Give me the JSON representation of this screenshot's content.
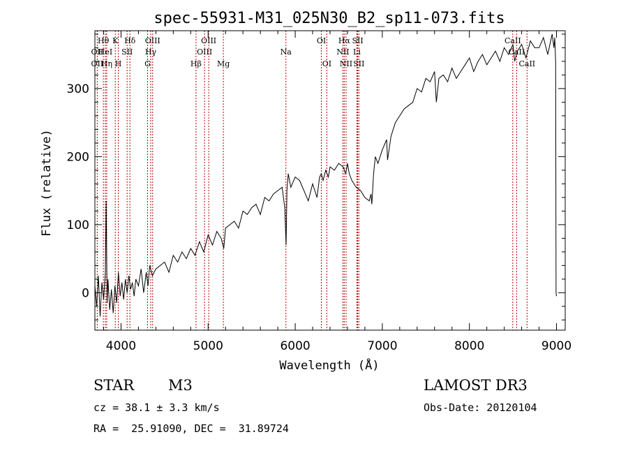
{
  "chart_data": {
    "type": "line",
    "title": "spec-55931-M31_025N30_B2_sp11-073.fits",
    "xlabel": "Wavelength (Å)",
    "ylabel": "Flux (relative)",
    "xlim": [
      3700,
      9100
    ],
    "ylim": [
      -55,
      385
    ],
    "xticks": [
      4000,
      5000,
      6000,
      7000,
      8000,
      9000
    ],
    "yticks": [
      0,
      100,
      200,
      300
    ],
    "series": [
      {
        "name": "spectrum",
        "x": [
          3700,
          3720,
          3740,
          3760,
          3780,
          3800,
          3820,
          3830,
          3840,
          3850,
          3870,
          3890,
          3910,
          3930,
          3950,
          3970,
          3990,
          4010,
          4030,
          4050,
          4070,
          4090,
          4110,
          4130,
          4150,
          4170,
          4200,
          4230,
          4260,
          4290,
          4310,
          4330,
          4360,
          4400,
          4450,
          4500,
          4550,
          4600,
          4650,
          4700,
          4750,
          4800,
          4850,
          4900,
          4950,
          5000,
          5050,
          5100,
          5150,
          5180,
          5200,
          5250,
          5300,
          5350,
          5400,
          5450,
          5500,
          5550,
          5600,
          5650,
          5700,
          5750,
          5800,
          5850,
          5880,
          5895,
          5905,
          5920,
          5950,
          6000,
          6050,
          6100,
          6150,
          6200,
          6250,
          6280,
          6300,
          6320,
          6350,
          6380,
          6400,
          6450,
          6500,
          6550,
          6580,
          6600,
          6620,
          6650,
          6700,
          6750,
          6800,
          6850,
          6870,
          6880,
          6900,
          6920,
          6950,
          7000,
          7050,
          7060,
          7100,
          7150,
          7200,
          7250,
          7300,
          7350,
          7400,
          7450,
          7500,
          7550,
          7600,
          7620,
          7650,
          7700,
          7750,
          7800,
          7850,
          7900,
          7950,
          8000,
          8050,
          8100,
          8150,
          8200,
          8250,
          8300,
          8350,
          8400,
          8450,
          8500,
          8520,
          8550,
          8600,
          8650,
          8700,
          8750,
          8800,
          8850,
          8900,
          8950,
          8970,
          8980,
          8990,
          8995,
          9000
        ],
        "y": [
          10,
          -20,
          25,
          -35,
          15,
          -10,
          30,
          135,
          -15,
          20,
          -25,
          5,
          -30,
          10,
          -15,
          30,
          -5,
          15,
          -10,
          20,
          0,
          25,
          5,
          15,
          -5,
          20,
          10,
          35,
          0,
          30,
          10,
          40,
          25,
          35,
          40,
          45,
          30,
          55,
          45,
          60,
          50,
          65,
          55,
          75,
          60,
          85,
          70,
          90,
          80,
          65,
          95,
          100,
          105,
          95,
          120,
          115,
          125,
          130,
          115,
          140,
          135,
          145,
          150,
          155,
          125,
          70,
          150,
          175,
          155,
          170,
          165,
          150,
          135,
          160,
          140,
          170,
          175,
          165,
          180,
          170,
          185,
          180,
          190,
          185,
          175,
          190,
          175,
          165,
          155,
          150,
          140,
          135,
          145,
          130,
          175,
          200,
          190,
          210,
          225,
          195,
          230,
          250,
          260,
          270,
          275,
          280,
          300,
          295,
          315,
          310,
          325,
          280,
          315,
          320,
          310,
          330,
          315,
          325,
          335,
          345,
          325,
          340,
          350,
          335,
          345,
          355,
          340,
          360,
          350,
          365,
          340,
          355,
          365,
          345,
          370,
          360,
          360,
          375,
          350,
          380,
          360,
          375,
          340,
          0,
          -5
        ]
      }
    ],
    "spectral_lines": [
      {
        "label": "Hθ",
        "x": 3797,
        "row": 1
      },
      {
        "label": "OII",
        "x": 3727,
        "row": 2
      },
      {
        "label": "OII",
        "x": 3727,
        "row": 3
      },
      {
        "label": "HeI",
        "x": 3820,
        "row": 2
      },
      {
        "label": "Hη",
        "x": 3835,
        "row": 3
      },
      {
        "label": "K",
        "x": 3934,
        "row": 1
      },
      {
        "label": "SII",
        "x": 4070,
        "row": 2
      },
      {
        "label": "H",
        "x": 3969,
        "row": 3
      },
      {
        "label": "Hδ",
        "x": 4102,
        "row": 1
      },
      {
        "label": "OIII",
        "x": 4363,
        "row": 1
      },
      {
        "label": "Hγ",
        "x": 4341,
        "row": 2
      },
      {
        "label": "G",
        "x": 4305,
        "row": 3
      },
      {
        "label": "Hβ",
        "x": 4861,
        "row": 3
      },
      {
        "label": "OIII",
        "x": 5007,
        "row": 1
      },
      {
        "label": "OIII",
        "x": 4959,
        "row": 2
      },
      {
        "label": "Mg",
        "x": 5175,
        "row": 3
      },
      {
        "label": "Na",
        "x": 5893,
        "row": 2
      },
      {
        "label": "OI",
        "x": 6300,
        "row": 1
      },
      {
        "label": "OI",
        "x": 6363,
        "row": 3
      },
      {
        "label": "Hα",
        "x": 6563,
        "row": 1
      },
      {
        "label": "NII",
        "x": 6548,
        "row": 2
      },
      {
        "label": "NII",
        "x": 6584,
        "row": 3
      },
      {
        "label": "SII",
        "x": 6717,
        "row": 1
      },
      {
        "label": "Li",
        "x": 6708,
        "row": 2
      },
      {
        "label": "SII",
        "x": 6731,
        "row": 3
      },
      {
        "label": "CaII",
        "x": 8498,
        "row": 1
      },
      {
        "label": "CaII",
        "x": 8542,
        "row": 2
      },
      {
        "label": "CaII",
        "x": 8662,
        "row": 3
      }
    ]
  },
  "info": {
    "class": "STAR",
    "subclass": "M3",
    "survey": "LAMOST DR3",
    "cz": "cz = 38.1 ± 3.3 km/s",
    "obs_date": "Obs-Date: 20120104",
    "coords": "RA =  25.91090, DEC =  31.89724"
  }
}
